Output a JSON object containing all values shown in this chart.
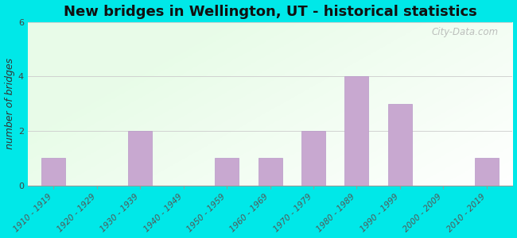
{
  "title": "New bridges in Wellington, UT - historical statistics",
  "categories": [
    "1910 - 1919",
    "1920 - 1929",
    "1930 - 1939",
    "1940 - 1949",
    "1950 - 1959",
    "1960 - 1969",
    "1970 - 1979",
    "1980 - 1989",
    "1990 - 1999",
    "2000 - 2009",
    "2010 - 2019"
  ],
  "values": [
    1,
    0,
    2,
    0,
    1,
    1,
    2,
    4,
    3,
    0,
    1
  ],
  "bar_color": "#c8a8d0",
  "bar_edge_color": "#b898c8",
  "ylabel": "number of bridges",
  "ylim": [
    0,
    6
  ],
  "yticks": [
    0,
    2,
    4,
    6
  ],
  "background_outer": "#00e8e8",
  "grid_color": "#cccccc",
  "title_fontsize": 13,
  "ylabel_fontsize": 9,
  "tick_fontsize": 7.5,
  "watermark": "City-Data.com"
}
